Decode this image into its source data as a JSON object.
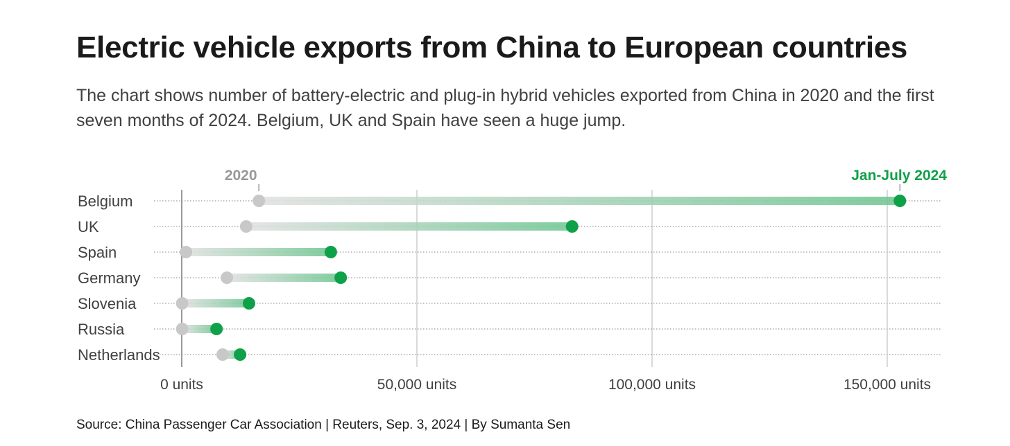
{
  "title": "Electric vehicle exports from China to European countries",
  "subtitle": "The chart shows number of battery-electric and plug-in hybrid vehicles exported from China in 2020 and the first seven months of 2024. Belgium, UK and Spain have seen a huge jump.",
  "source": "Source: China Passenger Car Association | Reuters, Sep. 3, 2024 | By Sumanta Sen",
  "colors": {
    "start": "#c8c8c8",
    "end": "#0fa14a",
    "grid": "#b5b5b5",
    "text": "#404040"
  },
  "chart_data": {
    "type": "dumbbell",
    "title": "Electric vehicle exports from China to European countries",
    "series": [
      {
        "name": "2020",
        "values": [
          16400,
          13700,
          900,
          9600,
          100,
          100,
          8700
        ]
      },
      {
        "name": "Jan-July 2024",
        "values": [
          152700,
          83000,
          31700,
          33800,
          14300,
          7400,
          12400
        ]
      }
    ],
    "categories": [
      "Belgium",
      "UK",
      "Spain",
      "Germany",
      "Slovenia",
      "Russia",
      "Netherlands"
    ],
    "xlim": [
      0,
      160000
    ],
    "xticks": [
      0,
      50000,
      100000,
      150000
    ],
    "xtick_labels": [
      "0 units",
      "50,000 units",
      "100,000 units",
      "150,000 units"
    ],
    "grid": true
  }
}
